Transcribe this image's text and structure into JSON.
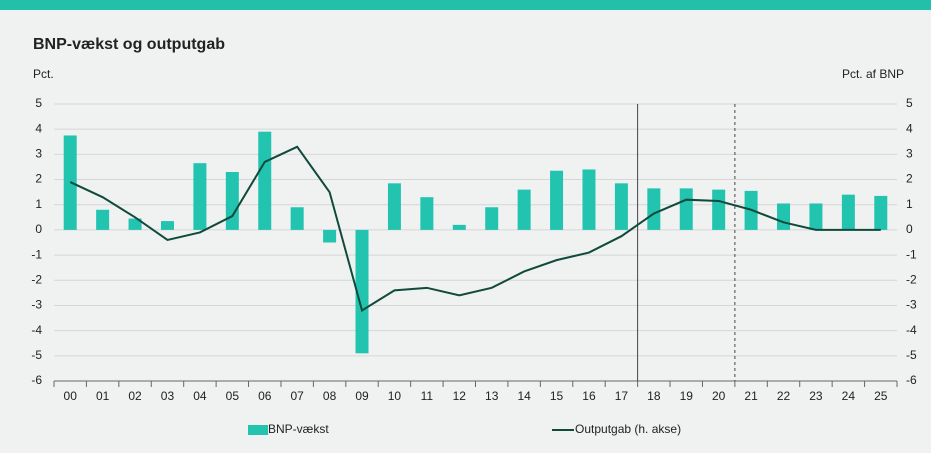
{
  "chart_data": {
    "type": "bar_line",
    "title": "BNP-vækst og outputgab",
    "ylabel": "Pct.",
    "y2label": "Pct. af BNP",
    "categories": [
      "00",
      "01",
      "02",
      "03",
      "04",
      "05",
      "06",
      "07",
      "08",
      "09",
      "10",
      "11",
      "12",
      "13",
      "14",
      "15",
      "16",
      "17",
      "18",
      "19",
      "20",
      "21",
      "22",
      "23",
      "24",
      "25"
    ],
    "series": [
      {
        "name": "BNP-vækst",
        "type": "bar",
        "color": "#22c4b0",
        "values": [
          3.75,
          0.8,
          0.45,
          0.35,
          2.65,
          2.3,
          3.9,
          0.9,
          -0.5,
          -4.9,
          1.85,
          1.3,
          0.2,
          0.9,
          1.6,
          2.35,
          2.4,
          1.85,
          1.65,
          1.65,
          1.6,
          1.55,
          1.05,
          1.05,
          1.4,
          1.35
        ]
      },
      {
        "name": "Outputgab (h. akse)",
        "type": "line",
        "axis": "y2",
        "color": "#0f4a3c",
        "values": [
          1.9,
          1.3,
          0.5,
          -0.4,
          -0.1,
          0.55,
          2.7,
          3.3,
          1.5,
          -3.2,
          -2.4,
          -2.3,
          -2.6,
          -2.3,
          -1.65,
          -1.2,
          -0.9,
          -0.25,
          0.65,
          1.2,
          1.15,
          0.8,
          0.3,
          0.0,
          0.0,
          0.0
        ]
      }
    ],
    "ylim": [
      -6,
      5
    ],
    "yticks": [
      -6,
      -5,
      -4,
      -3,
      -2,
      -1,
      0,
      1,
      2,
      3,
      4,
      5
    ],
    "y2lim": [
      -6,
      5
    ],
    "y2ticks": [
      -6,
      -5,
      -4,
      -3,
      -2,
      -1,
      0,
      1,
      2,
      3,
      4,
      5
    ],
    "grid": true,
    "legend": "bottom"
  }
}
